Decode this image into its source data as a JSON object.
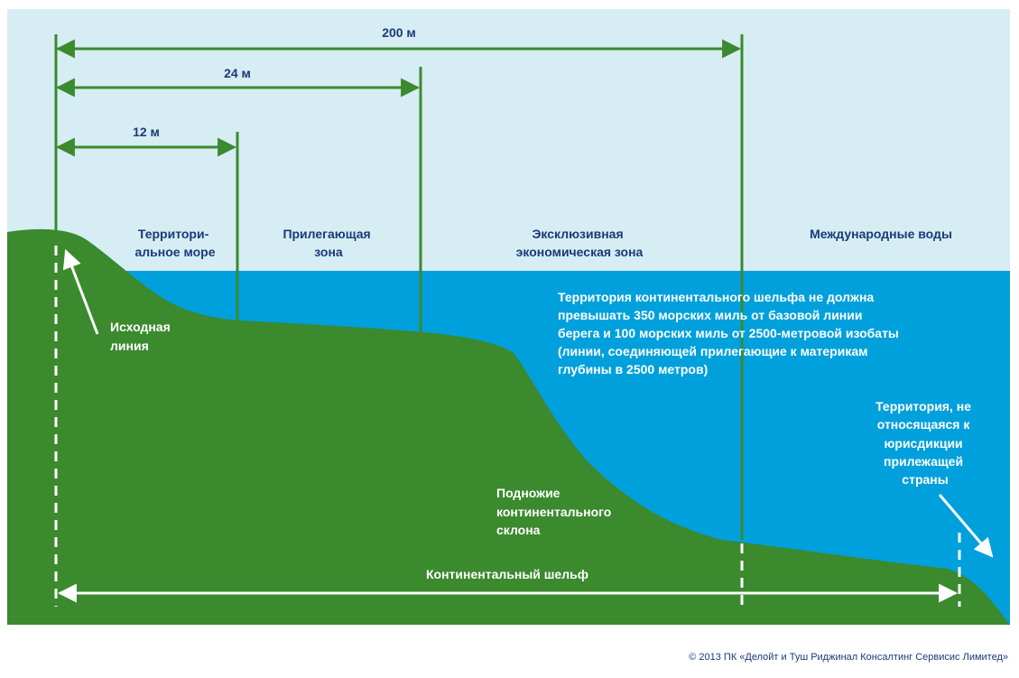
{
  "colors": {
    "sky": "#d6edf4",
    "sea": "#00a0dc",
    "land": "#3b8a2e",
    "line": "#3b8a2e",
    "label_dark": "#1a3a78",
    "label_light": "#ffffff"
  },
  "dimensions": {
    "d200": "200 м",
    "d24": "24 м",
    "d12": "12 м"
  },
  "zones": {
    "territorial": [
      "Территори-",
      "альное море"
    ],
    "contiguous": [
      "Прилегающая",
      "зона"
    ],
    "eez": [
      "Эксклюзивная",
      "экономическая зона"
    ],
    "international": [
      "Международные воды"
    ]
  },
  "labels": {
    "baseline": [
      "Исходная",
      "линия"
    ],
    "shelf_note": [
      "Территория континентального шельфа не должна",
      "превышать 350 морских миль от базовой линии",
      "берега и 100 морских миль от 2500-метровой изобаты",
      "(линии, соединяющей прилегающие к материкам",
      "глубины в 2500 метров)"
    ],
    "outside": [
      "Территория, не",
      "относящаяся к",
      "юрисдикции",
      "прилежащей",
      "страны"
    ],
    "slope_foot": [
      "Подножие",
      "континентального",
      "склона"
    ],
    "shelf": "Континентальный шельф"
  },
  "footer": {
    "copyright": "© 2013 ПК «Делойт и Туш Риджинал Консалтинг Сервисис Лимитед»"
  }
}
